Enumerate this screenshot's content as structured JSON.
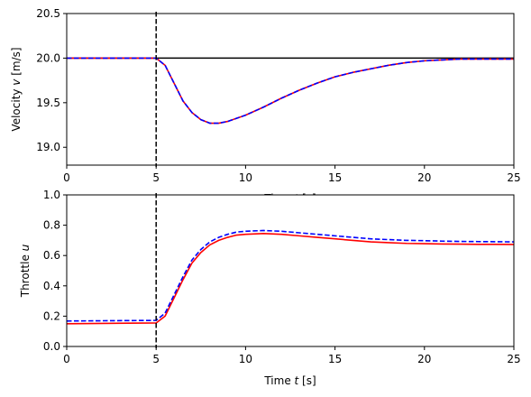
{
  "chart_data": [
    {
      "type": "line",
      "title": "",
      "xlabel": "Time t [s]",
      "xlabel_prefix": "Time ",
      "xlabel_var": "t",
      "xlabel_suffix": " [s]",
      "ylabel": "Velocity v [m/s]",
      "ylabel_prefix": "Velocity ",
      "ylabel_var": "v",
      "ylabel_suffix": " [m/s]",
      "xlim": [
        0,
        25
      ],
      "ylim": [
        18.8,
        20.5
      ],
      "xticks": [
        "0",
        "5",
        "10",
        "15",
        "20",
        "25"
      ],
      "yticks": [
        "19.0",
        "19.5",
        "20.0",
        "20.5"
      ],
      "grid": false,
      "reference_line": {
        "y": 20.0,
        "color": "#000000"
      },
      "vline": {
        "x": 5,
        "style": "dashed",
        "color": "#000000"
      },
      "series": [
        {
          "color": "#ff0000",
          "style": "solid",
          "x": [
            0,
            5,
            5.5,
            6,
            6.5,
            7,
            7.5,
            8,
            8.5,
            9,
            10,
            11,
            12,
            13,
            14,
            15,
            16,
            17,
            18,
            19,
            20,
            21,
            22,
            23,
            24,
            25
          ],
          "y": [
            20.0,
            20.0,
            19.92,
            19.72,
            19.52,
            19.39,
            19.31,
            19.27,
            19.27,
            19.29,
            19.36,
            19.45,
            19.55,
            19.64,
            19.72,
            19.79,
            19.84,
            19.88,
            19.92,
            19.95,
            19.97,
            19.98,
            19.99,
            19.99,
            19.99,
            19.99
          ]
        },
        {
          "color": "#0000ff",
          "style": "dashed",
          "x": [
            0,
            5,
            5.5,
            6,
            6.5,
            7,
            7.5,
            8,
            8.5,
            9,
            10,
            11,
            12,
            13,
            14,
            15,
            16,
            17,
            18,
            19,
            20,
            21,
            22,
            23,
            24,
            25
          ],
          "y": [
            20.0,
            20.0,
            19.92,
            19.72,
            19.52,
            19.39,
            19.31,
            19.27,
            19.27,
            19.29,
            19.36,
            19.45,
            19.55,
            19.64,
            19.72,
            19.79,
            19.84,
            19.88,
            19.92,
            19.95,
            19.97,
            19.98,
            19.99,
            19.99,
            19.99,
            19.99
          ]
        }
      ]
    },
    {
      "type": "line",
      "title": "",
      "xlabel": "Time t [s]",
      "xlabel_prefix": "Time ",
      "xlabel_var": "t",
      "xlabel_suffix": " [s]",
      "ylabel": "Throttle u",
      "ylabel_prefix": "Throttle ",
      "ylabel_var": "u",
      "ylabel_suffix": "",
      "xlim": [
        0,
        25
      ],
      "ylim": [
        0,
        1.0
      ],
      "xticks": [
        "0",
        "5",
        "10",
        "15",
        "20",
        "25"
      ],
      "yticks": [
        "0.0",
        "0.2",
        "0.4",
        "0.6",
        "0.8",
        "1.0"
      ],
      "grid": false,
      "vline": {
        "x": 5,
        "style": "dashed",
        "color": "#000000"
      },
      "series": [
        {
          "color": "#ff0000",
          "style": "solid",
          "x": [
            0,
            5,
            5.5,
            6,
            6.5,
            7,
            7.5,
            8,
            8.5,
            9,
            9.5,
            10,
            11,
            12,
            13,
            14,
            15,
            16,
            17,
            18,
            19,
            20,
            21,
            22,
            23,
            24,
            25
          ],
          "y": [
            0.15,
            0.155,
            0.2,
            0.32,
            0.44,
            0.55,
            0.62,
            0.67,
            0.7,
            0.72,
            0.735,
            0.74,
            0.745,
            0.74,
            0.73,
            0.72,
            0.71,
            0.7,
            0.69,
            0.685,
            0.68,
            0.678,
            0.676,
            0.675,
            0.674,
            0.674,
            0.673
          ]
        },
        {
          "color": "#0000ff",
          "style": "dashed",
          "x": [
            0,
            5,
            5.5,
            6,
            6.5,
            7,
            7.5,
            8,
            8.5,
            9,
            9.5,
            10,
            11,
            12,
            13,
            14,
            15,
            16,
            17,
            18,
            19,
            20,
            21,
            22,
            23,
            24,
            25
          ],
          "y": [
            0.168,
            0.172,
            0.22,
            0.34,
            0.46,
            0.57,
            0.64,
            0.69,
            0.72,
            0.74,
            0.755,
            0.76,
            0.765,
            0.76,
            0.75,
            0.74,
            0.73,
            0.72,
            0.71,
            0.705,
            0.7,
            0.698,
            0.695,
            0.693,
            0.692,
            0.691,
            0.69
          ]
        }
      ]
    }
  ]
}
